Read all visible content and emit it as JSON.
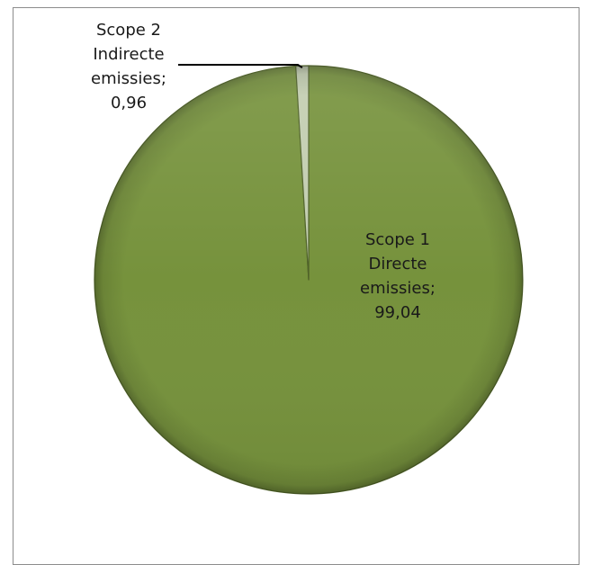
{
  "chart_data": {
    "type": "pie",
    "start_angle_deg": 0,
    "direction": "clockwise",
    "slices": [
      {
        "label_lines": [
          "Scope 1",
          "Directe",
          "emissies;",
          "99,04"
        ],
        "value": 99.04,
        "color": "#76923c"
      },
      {
        "label_lines": [
          "Scope 2",
          "Indirecte",
          "emissies;",
          "0,96"
        ],
        "value": 0.96,
        "color": "#c2cdb0"
      }
    ],
    "label_colors": [
      "#1a1a1a",
      "#1a1a1a"
    ]
  }
}
